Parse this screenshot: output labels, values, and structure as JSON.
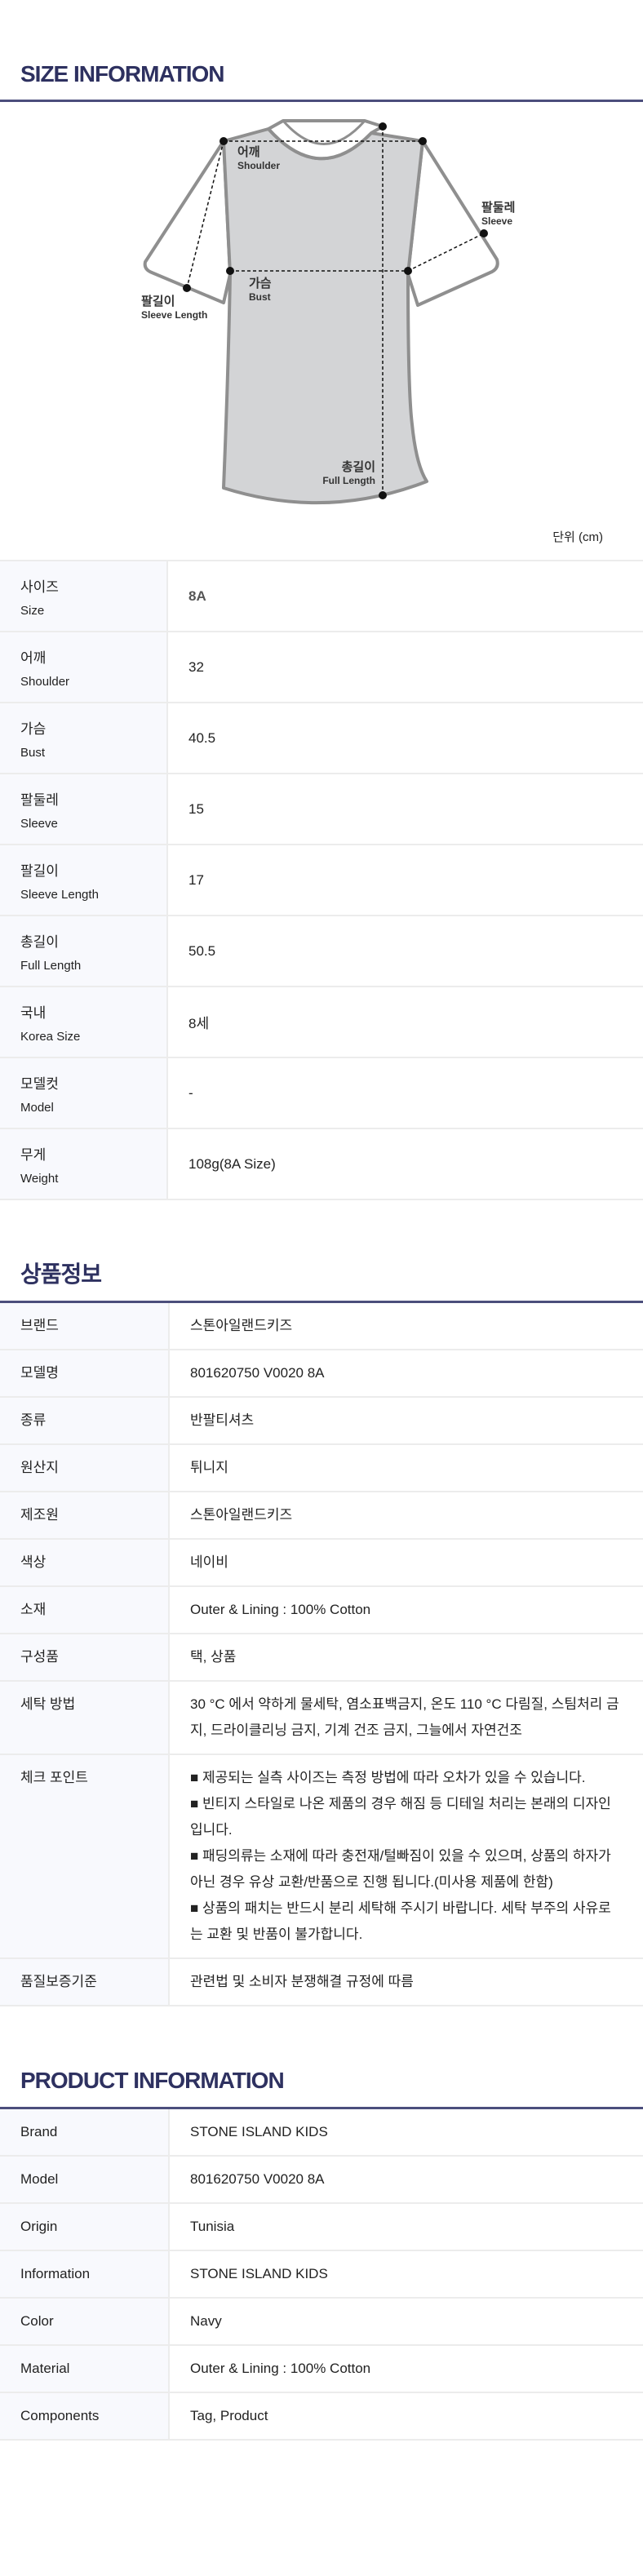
{
  "size_info": {
    "title": "SIZE INFORMATION",
    "diagram_labels": {
      "shoulder": {
        "ko": "어깨",
        "en": "Shoulder"
      },
      "sleeve": {
        "ko": "팔둘레",
        "en": "Sleeve"
      },
      "bust": {
        "ko": "가슴",
        "en": "Bust"
      },
      "sleeve_length": {
        "ko": "팔길이",
        "en": "Sleeve Length"
      },
      "full_length": {
        "ko": "총길이",
        "en": "Full Length"
      }
    },
    "unit": "단위 (cm)",
    "rows": [
      {
        "ko": "사이즈",
        "en": "Size",
        "value": "8A"
      },
      {
        "ko": "어깨",
        "en": "Shoulder",
        "value": "32"
      },
      {
        "ko": "가슴",
        "en": "Bust",
        "value": "40.5"
      },
      {
        "ko": "팔둘레",
        "en": "Sleeve",
        "value": "15"
      },
      {
        "ko": "팔길이",
        "en": "Sleeve Length",
        "value": "17"
      },
      {
        "ko": "총길이",
        "en": "Full Length",
        "value": "50.5"
      },
      {
        "ko": "국내",
        "en": "Korea Size",
        "value": "8세"
      },
      {
        "ko": "모델컷",
        "en": "Model",
        "value": "-"
      },
      {
        "ko": "무게",
        "en": "Weight",
        "value": "108g(8A Size)"
      }
    ]
  },
  "product_info_ko": {
    "title": "상품정보",
    "rows": [
      {
        "label": "브랜드",
        "value": "스톤아일랜드키즈"
      },
      {
        "label": "모델명",
        "value": "801620750 V0020 8A"
      },
      {
        "label": "종류",
        "value": "반팔티셔츠"
      },
      {
        "label": "원산지",
        "value": "튀니지"
      },
      {
        "label": "제조원",
        "value": "스톤아일랜드키즈"
      },
      {
        "label": "색상",
        "value": "네이비"
      },
      {
        "label": "소재",
        "value": "Outer & Lining : 100% Cotton"
      },
      {
        "label": "구성품",
        "value": "택, 상품"
      },
      {
        "label": "세탁 방법",
        "value": "30 °C 에서 약하게 물세탁, 염소표백금지, 온도 110 °C 다림질, 스팀처리 금지, 드라이클리닝 금지, 기계 건조 금지, 그늘에서 자연건조"
      },
      {
        "label": "체크 포인트",
        "items": [
          " ■ 제공되는 실측 사이즈는 측정 방법에 따라 오차가 있을 수 있습니다.",
          " ■ 빈티지 스타일로 나온 제품의 경우 해짐 등 디테일 처리는 본래의 디자인입니다.",
          " ■ 패딩의류는 소재에 따라 충전재/털빠짐이 있을 수 있으며, 상품의 하자가 아닌 경우 유상 교환/반품으로 진행 됩니다.(미사용 제품에 한함)",
          " ■ 상품의 패치는 반드시 분리 세탁해 주시기 바랍니다. 세탁 부주의 사유로는 교환 및 반품이 불가합니다."
        ]
      },
      {
        "label": "품질보증기준",
        "value": "관련법 및 소비자 분쟁해결 규정에 따름"
      }
    ]
  },
  "product_info_en": {
    "title": "PRODUCT INFORMATION",
    "rows": [
      {
        "label": "Brand",
        "value": "STONE ISLAND KIDS"
      },
      {
        "label": "Model",
        "value": "801620750 V0020 8A"
      },
      {
        "label": "Origin",
        "value": "Tunisia"
      },
      {
        "label": "Information",
        "value": "STONE ISLAND KIDS"
      },
      {
        "label": "Color",
        "value": "Navy"
      },
      {
        "label": "Material",
        "value": "Outer & Lining : 100% Cotton"
      },
      {
        "label": "Components",
        "value": "Tag, Product"
      }
    ]
  },
  "colors": {
    "title": "#2e3160",
    "rule": "#4b4e7c",
    "label_bg": "#f8f9fd",
    "garment_fill": "#d3d4d6",
    "garment_outline": "#8f8f8f"
  }
}
